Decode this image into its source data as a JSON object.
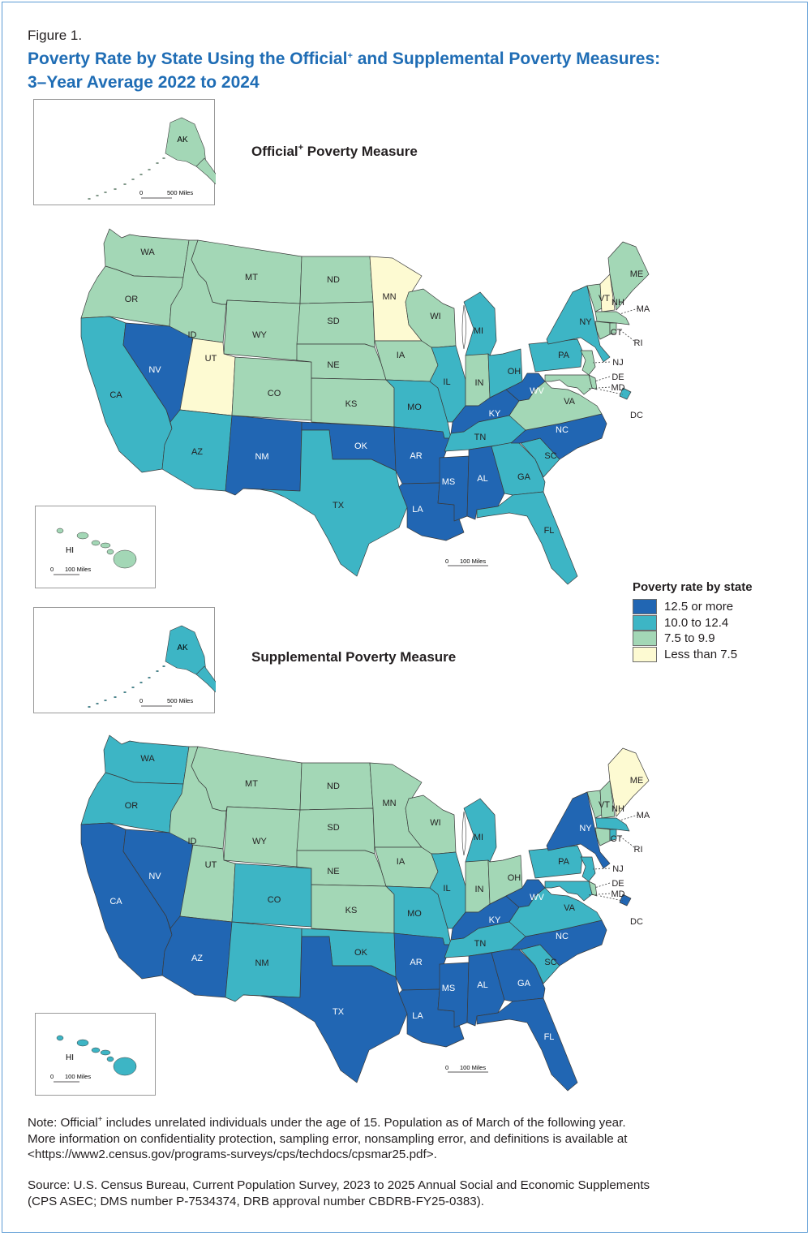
{
  "figure_label": "Figure 1.",
  "title_part1": "Poverty Rate by State Using the Official",
  "title_mark": "+",
  "title_part2": " and Supplemental Poverty Measures:",
  "title_line2": "3–Year Average 2022 to 2024",
  "maps": [
    {
      "title": "Official",
      "title_mark": "+",
      "title_rest": " Poverty Measure",
      "categories": {
        "WA": "c3",
        "OR": "c3",
        "ID": "c3",
        "MT": "c3",
        "WY": "c3",
        "ND": "c3",
        "SD": "c3",
        "NE": "c3",
        "KS": "c3",
        "CO": "c3",
        "IA": "c3",
        "WI": "c3",
        "IN": "c3",
        "VA": "c3",
        "NJ": "c3",
        "MD": "c3",
        "DE": "c3",
        "VT": "c3",
        "ME": "c3",
        "MA": "c3",
        "CT": "c3",
        "RI": "c3",
        "AK": "c3",
        "HI": "c3",
        "MN": "c4",
        "UT": "c4",
        "NH": "c4",
        "CA": "c2",
        "AZ": "c2",
        "TX": "c2",
        "MO": "c2",
        "IL": "c2",
        "MI": "c2",
        "OH": "c2",
        "TN": "c2",
        "GA": "c2",
        "SC": "c2",
        "FL": "c2",
        "NY": "c2",
        "PA": "c2",
        "DC": "c2",
        "NV": "c1",
        "NM": "c1",
        "OK": "c1",
        "AR": "c1",
        "LA": "c1",
        "MS": "c1",
        "AL": "c1",
        "KY": "c1",
        "WV": "c1",
        "NC": "c1"
      }
    },
    {
      "title": "Supplemental Poverty Measure",
      "title_mark": "",
      "title_rest": "",
      "categories": {
        "ID": "c3",
        "MT": "c3",
        "WY": "c3",
        "ND": "c3",
        "SD": "c3",
        "NE": "c3",
        "KS": "c3",
        "UT": "c3",
        "MN": "c3",
        "IA": "c3",
        "WI": "c3",
        "IN": "c3",
        "OH": "c3",
        "VT": "c3",
        "NH": "c3",
        "CT": "c3",
        "DE": "c3",
        "ME": "c4",
        "WA": "c2",
        "OR": "c2",
        "CO": "c2",
        "NM": "c2",
        "OK": "c2",
        "MO": "c2",
        "IL": "c2",
        "MI": "c2",
        "TN": "c2",
        "SC": "c2",
        "VA": "c2",
        "PA": "c2",
        "MA": "c2",
        "RI": "c2",
        "NJ": "c2",
        "MD": "c2",
        "AK": "c2",
        "HI": "c2",
        "CA": "c1",
        "NV": "c1",
        "AZ": "c1",
        "TX": "c1",
        "AR": "c1",
        "LA": "c1",
        "MS": "c1",
        "AL": "c1",
        "GA": "c1",
        "FL": "c1",
        "KY": "c1",
        "WV": "c1",
        "NC": "c1",
        "NY": "c1",
        "DC": "c1"
      }
    }
  ],
  "state_labels": [
    "WA",
    "OR",
    "CA",
    "NV",
    "ID",
    "MT",
    "WY",
    "UT",
    "CO",
    "AZ",
    "NM",
    "ND",
    "SD",
    "NE",
    "KS",
    "OK",
    "TX",
    "MN",
    "IA",
    "MO",
    "AR",
    "LA",
    "WI",
    "IL",
    "MS",
    "MI",
    "IN",
    "KY",
    "TN",
    "AL",
    "OH",
    "WV",
    "GA",
    "FL",
    "SC",
    "NC",
    "VA",
    "PA",
    "NY",
    "VT",
    "NH",
    "ME",
    "MA",
    "CT",
    "RI",
    "NJ",
    "DE",
    "MD",
    "DC",
    "AK",
    "HI"
  ],
  "scale_main": [
    "0",
    "100 Miles"
  ],
  "scale_ak": [
    "0",
    "500 Miles"
  ],
  "scale_hi": [
    "0",
    "100 Miles"
  ],
  "legend": {
    "title": "Poverty rate by state",
    "items": [
      {
        "key": "c1",
        "label": "12.5 or more",
        "color": "#2166b3"
      },
      {
        "key": "c2",
        "label": "10.0 to 12.4",
        "color": "#3db5c5"
      },
      {
        "key": "c3",
        "label": "7.5 to 9.9",
        "color": "#a3d7b6"
      },
      {
        "key": "c4",
        "label": "Less than 7.5",
        "color": "#fdfad2"
      }
    ]
  },
  "note": "Note: Official+ includes unrelated individuals under the age of 15. Population as of March of the following year. More information on confidentiality protection, sampling error, nonsampling error, and definitions is available at <https://www2.census.gov/programs-surveys/cps/techdocs/cpsmar25.pdf>.",
  "note_parts": [
    "Note: Official",
    "+",
    " includes unrelated individuals under the age of 15. Population as of March of the following year.",
    "More information on confidentiality protection, sampling error, nonsampling error, and definitions is available at",
    "<https://www2.census.gov/programs-surveys/cps/techdocs/cpsmar25.pdf>."
  ],
  "source_lines": [
    "Source: U.S. Census Bureau, Current Population Survey, 2023 to 2025 Annual Social and Economic Supplements",
    "(CPS ASEC; DMS number P-7534374, DRB approval number CBDRB-FY25-0383)."
  ]
}
